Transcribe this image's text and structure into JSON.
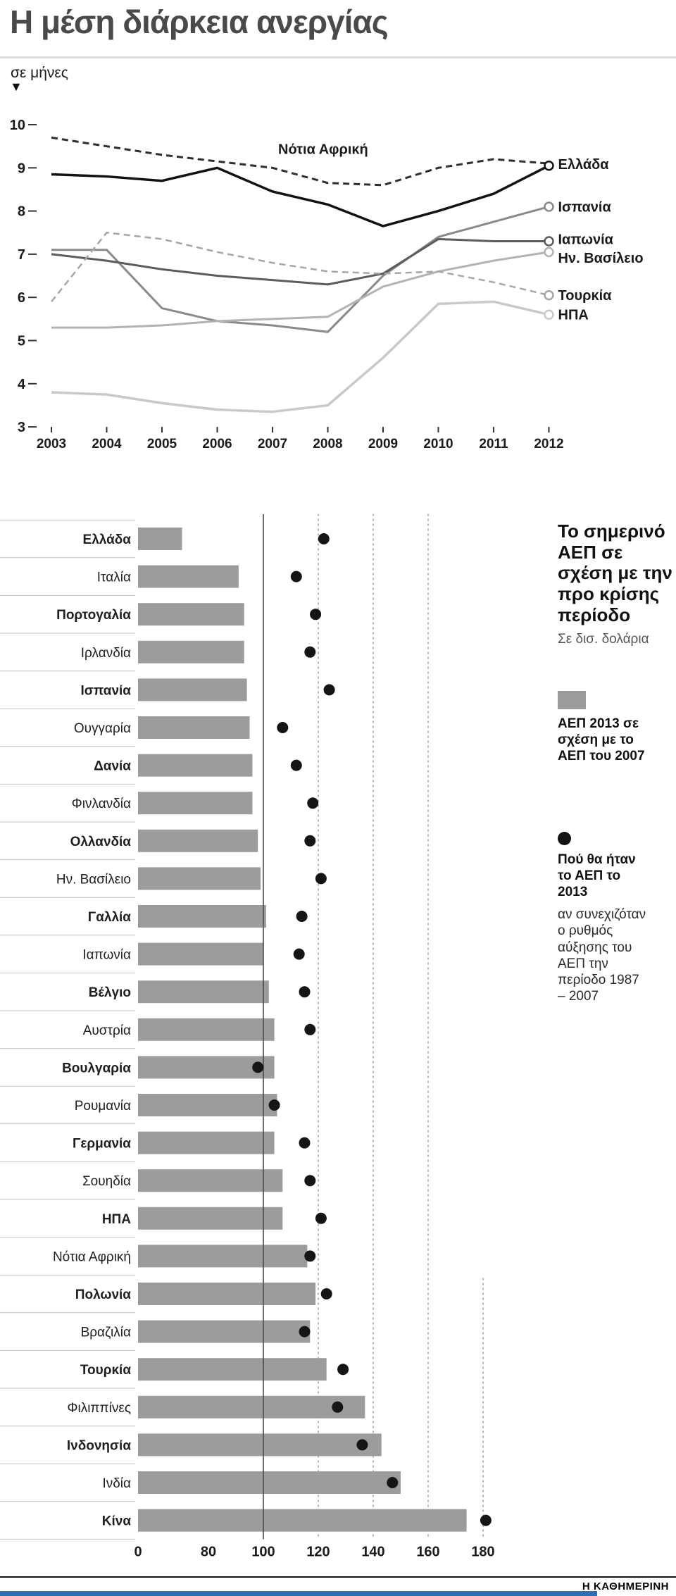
{
  "page": {
    "title": "Η μέση διάρκεια ανεργίας",
    "footer_logo": "Η ΚΑΘΗΜΕΡΙΝΗ"
  },
  "right_panel": {
    "heading": "Το σημερινό ΑΕΠ σε σχέση με την προ κρίσης περίοδο",
    "subheading": "Σε δισ. δολάρια",
    "legend_bar_label": "ΑΕΠ 2013 σε σχέση με το ΑΕΠ του 2007",
    "legend_dot_title": "Πού θα ήταν το ΑΕΠ το 2013",
    "legend_dot_text": "αν συνεχιζόταν ο ρυθμός αύξησης του ΑΕΠ την περίοδο 1987 – 2007"
  },
  "chart_data": [
    {
      "type": "line",
      "title": "Η μέση διάρκεια ανεργίας",
      "ylabel": "σε μήνες",
      "x": [
        2003,
        2004,
        2005,
        2006,
        2007,
        2008,
        2009,
        2010,
        2011,
        2012
      ],
      "ylim": [
        3,
        10
      ],
      "y_ticks": [
        10,
        9,
        8,
        7,
        6,
        5,
        4,
        3
      ],
      "grid": false,
      "series": [
        {
          "key": "south-africa",
          "name": "Νότια Αφρική",
          "color": "#2e2e2e",
          "dashed": true,
          "width": 3,
          "label": "inline",
          "end_marker": false,
          "values": [
            9.7,
            9.5,
            9.3,
            9.15,
            9.0,
            8.65,
            8.6,
            9.0,
            9.2,
            9.1
          ]
        },
        {
          "key": "greece",
          "name": "Ελλάδα",
          "color": "#121212",
          "dashed": false,
          "width": 3.5,
          "label": "end",
          "end_marker": true,
          "values": [
            8.85,
            8.8,
            8.7,
            9.0,
            8.45,
            8.15,
            7.65,
            8.0,
            8.4,
            9.05
          ]
        },
        {
          "key": "spain",
          "name": "Ισπανία",
          "color": "#8a8a8a",
          "dashed": false,
          "width": 3,
          "label": "end",
          "end_marker": true,
          "values": [
            7.1,
            7.1,
            5.75,
            5.45,
            5.35,
            5.2,
            6.5,
            7.4,
            7.75,
            8.1
          ]
        },
        {
          "key": "japan",
          "name": "Ιαπωνία",
          "color": "#5c5c5c",
          "dashed": false,
          "width": 3,
          "label": "end",
          "end_marker": true,
          "values": [
            7.0,
            6.85,
            6.65,
            6.5,
            6.4,
            6.3,
            6.55,
            7.35,
            7.3,
            7.3
          ]
        },
        {
          "key": "uk",
          "name": "Ην. Βασίλειο",
          "color": "#b3b3b3",
          "dashed": false,
          "width": 3,
          "label": "end",
          "end_marker": true,
          "values": [
            5.3,
            5.3,
            5.35,
            5.45,
            5.5,
            5.55,
            6.25,
            6.6,
            6.85,
            7.05
          ]
        },
        {
          "key": "turkey",
          "name": "Τουρκία",
          "color": "#a6a6a6",
          "dashed": true,
          "width": 2.5,
          "label": "end",
          "end_marker": true,
          "values": [
            5.9,
            7.5,
            7.35,
            7.05,
            6.8,
            6.6,
            6.55,
            6.6,
            6.35,
            6.05
          ]
        },
        {
          "key": "usa",
          "name": "ΗΠΑ",
          "color": "#c9c9c9",
          "dashed": false,
          "width": 3.5,
          "label": "end",
          "end_marker": true,
          "values": [
            3.8,
            3.75,
            3.55,
            3.4,
            3.35,
            3.5,
            4.6,
            5.85,
            5.9,
            5.6
          ]
        }
      ]
    },
    {
      "type": "bar",
      "orientation": "horizontal",
      "title": "Το σημερινό ΑΕΠ σε σχέση με την προ κρίσης περίοδο",
      "subtitle": "Σε δισ. δολάρια",
      "bar_color": "#9c9c9c",
      "dot_color": "#151515",
      "x_ticks": [
        0,
        80,
        100,
        120,
        140,
        160,
        180
      ],
      "axis_note": "broken axis: segment 0–80 compressed",
      "categories": [
        "Ελλάδα",
        "Ιταλία",
        "Πορτογαλία",
        "Ιρλανδία",
        "Ισπανία",
        "Ουγγαρία",
        "Δανία",
        "Φινλανδία",
        "Ολλανδία",
        "Ην. Βασίλειο",
        "Γαλλία",
        "Ιαπωνία",
        "Βέλγιο",
        "Αυστρία",
        "Βουλγαρία",
        "Ρουμανία",
        "Γερμανία",
        "Σουηδία",
        "ΗΠΑ",
        "Νότια Αφρική",
        "Πολωνία",
        "Βραζιλία",
        "Τουρκία",
        "Φιλιππίνες",
        "Ινδονησία",
        "Ινδία",
        "Κίνα"
      ],
      "series": [
        {
          "name": "ΑΕΠ 2013 σε σχέση με το ΑΕΠ του 2007",
          "style": "bar",
          "values": [
            50,
            91,
            93,
            93,
            94,
            95,
            96,
            96,
            98,
            99,
            101,
            100,
            102,
            104,
            104,
            105,
            104,
            107,
            107,
            116,
            119,
            117,
            123,
            137,
            143,
            150,
            174
          ]
        },
        {
          "name": "Πού θα ήταν το ΑΕΠ το 2013 αν συνεχιζόταν ο ρυθμός αύξησης του ΑΕΠ την περίοδο 1987 – 2007",
          "style": "point",
          "values": [
            122,
            112,
            119,
            117,
            124,
            107,
            112,
            118,
            117,
            121,
            114,
            113,
            115,
            117,
            98,
            104,
            115,
            117,
            121,
            117,
            123,
            115,
            129,
            127,
            136,
            147,
            181
          ]
        }
      ]
    }
  ]
}
